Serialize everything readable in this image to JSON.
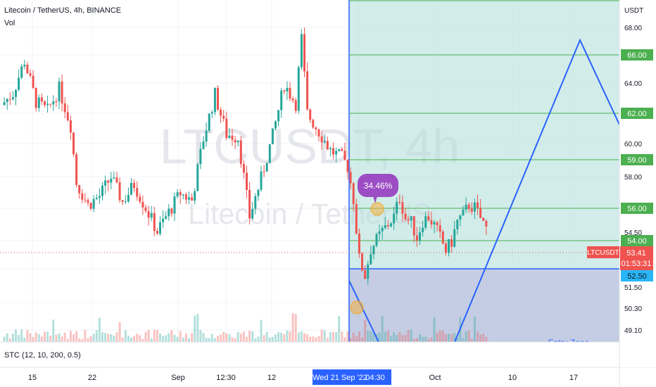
{
  "header": {
    "title": "Litecoin / TetherUS, 4h, BINANCE",
    "volume_label": "Vol"
  },
  "watermark": {
    "symbol": "LTCUSDT, 4h",
    "name": "Litecoin / TetherUS"
  },
  "indicator": {
    "label": "STC (12, 10, 200, 0.5)"
  },
  "price_axis": {
    "currency": "USDT",
    "ticks": [
      "68.00",
      "64.00",
      "60.00",
      "58.00",
      "54.50",
      "51.50",
      "50.30",
      "49.10"
    ]
  },
  "levels": [
    {
      "label": "66.00",
      "price": 66.0
    },
    {
      "label": "62.00",
      "price": 62.0
    },
    {
      "label": "59.00",
      "price": 59.0
    },
    {
      "label": "56.00",
      "price": 56.0
    },
    {
      "label": "54.00",
      "price": 54.0
    }
  ],
  "entry": {
    "label": "52.50",
    "price": 52.5,
    "zone_label": "Entry Zone"
  },
  "current_price": {
    "symbol": "LTCUSDT",
    "price": "53.41",
    "countdown": "01:53:31",
    "value": 53.41
  },
  "gain_badge": "34.46%",
  "time_axis": {
    "ticks": [
      "15",
      "22",
      "Sep",
      "12:30",
      "12",
      "Oct",
      "10",
      "17"
    ],
    "highlight_date": "Wed 21 Sep '22",
    "highlight_time": "04:30"
  },
  "colors": {
    "up": "#26a69a",
    "down": "#ef5350",
    "level_line": "#4caf50",
    "level_tag": "#4caf50",
    "entry_tag": "#29b6f6",
    "projection": "#2962ff",
    "target_fill": "#b2dfdb",
    "entry_fill": "#b0bcd9",
    "badge": "#9c4dc4",
    "price_tag": "#ef5350"
  },
  "chart_data": {
    "type": "candlestick",
    "title": "Litecoin / TetherUS, 4h, BINANCE",
    "ylabel": "USDT",
    "ylim": [
      48.5,
      69.5
    ],
    "x_ticks": [
      "15",
      "22",
      "Sep",
      "12:30",
      "12",
      "Oct",
      "10",
      "17"
    ],
    "price_path_days": [
      [
        0,
        61.8
      ],
      [
        2,
        62.6
      ],
      [
        4,
        64.8
      ],
      [
        6,
        62.0
      ],
      [
        8,
        61.4
      ],
      [
        10,
        62.9
      ],
      [
        12,
        60.4
      ],
      [
        13,
        56.5
      ],
      [
        15,
        55.0
      ],
      [
        17,
        55.6
      ],
      [
        19,
        56.9
      ],
      [
        21,
        55.2
      ],
      [
        23,
        56.4
      ],
      [
        25,
        54.8
      ],
      [
        27,
        53.2
      ],
      [
        29,
        54.5
      ],
      [
        31,
        55.8
      ],
      [
        33,
        55.3
      ],
      [
        35,
        59.5
      ],
      [
        37,
        62.5
      ],
      [
        39,
        59.8
      ],
      [
        41,
        59.6
      ],
      [
        43,
        54.2
      ],
      [
        45,
        56.8
      ],
      [
        47,
        59.7
      ],
      [
        49,
        63.2
      ],
      [
        51,
        61.9
      ],
      [
        52,
        66.3
      ],
      [
        53,
        61.2
      ],
      [
        55,
        60.0
      ],
      [
        57,
        58.7
      ],
      [
        59,
        58.2
      ],
      [
        60,
        57.6
      ],
      [
        61,
        55.4
      ],
      [
        62,
        51.3
      ],
      [
        63,
        50.2
      ],
      [
        64,
        52.0
      ],
      [
        66,
        53.2
      ],
      [
        68,
        54.2
      ],
      [
        69,
        55.5
      ],
      [
        70,
        54.1
      ],
      [
        71,
        53.8
      ],
      [
        72,
        52.8
      ],
      [
        73,
        53.9
      ],
      [
        74,
        54.2
      ],
      [
        75,
        53.6
      ],
      [
        76,
        52.8
      ],
      [
        77,
        51.9
      ],
      [
        78,
        52.5
      ],
      [
        79,
        53.9
      ],
      [
        80,
        54.3
      ],
      [
        81,
        55.0
      ],
      [
        82,
        54.8
      ],
      [
        83,
        54.1
      ],
      [
        84,
        53.4
      ]
    ]
  }
}
